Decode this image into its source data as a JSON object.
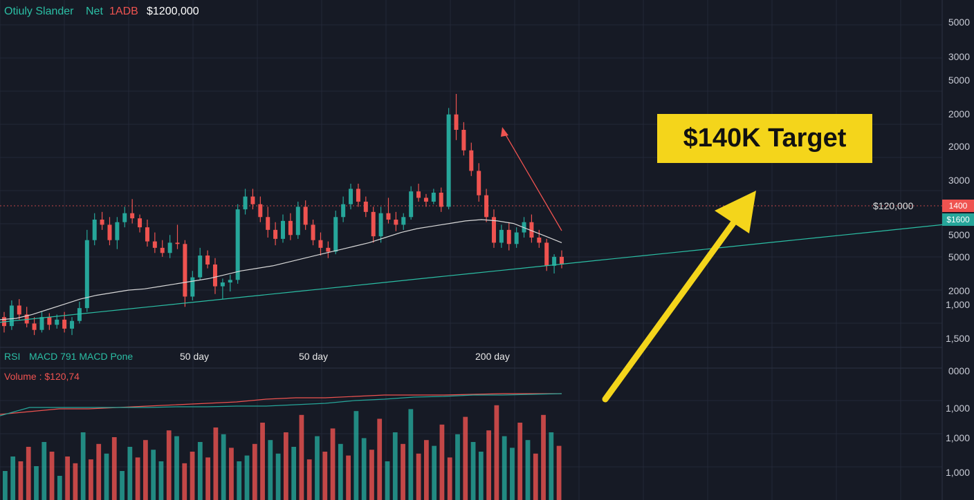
{
  "header": {
    "symbol": "Otiuly Slander",
    "exchange": "Net",
    "pair": "1ADB",
    "price": "$1200,000"
  },
  "annotation": {
    "target_label": "$140K Target",
    "resistance_label": "$120,000",
    "resistance_tag": "1400",
    "current_tag": "$1600"
  },
  "indicators": {
    "rsi": "RSI",
    "macd": "MACD  791  MACD Pone",
    "volume": "Volume : $120,74"
  },
  "ma_labels": [
    "50 day",
    "50 day",
    "200 day"
  ],
  "price_axis_labels": [
    "5000",
    "3000",
    "5000",
    "2000",
    "2000",
    "3000",
    "5000",
    "5000",
    "2000",
    "1,000",
    "1,500"
  ],
  "lower_axis_labels": [
    "0000",
    "1,000",
    "1,000",
    "1,000"
  ],
  "colors": {
    "background": "#161a25",
    "up": "#26a69a",
    "down": "#ef5350",
    "target_bg": "#f4d51b",
    "arrow": "#f4d51b",
    "ma_short": "#d9d9d9",
    "ma_long": "#2bbfa5"
  },
  "chart_data": {
    "type": "candlestick",
    "candles": [
      {
        "o": 1520,
        "h": 1560,
        "l": 1400,
        "c": 1450
      },
      {
        "o": 1450,
        "h": 1650,
        "l": 1420,
        "c": 1610
      },
      {
        "o": 1610,
        "h": 1660,
        "l": 1500,
        "c": 1540
      },
      {
        "o": 1540,
        "h": 1600,
        "l": 1440,
        "c": 1470
      },
      {
        "o": 1470,
        "h": 1520,
        "l": 1380,
        "c": 1420
      },
      {
        "o": 1420,
        "h": 1560,
        "l": 1400,
        "c": 1520
      },
      {
        "o": 1520,
        "h": 1550,
        "l": 1420,
        "c": 1460
      },
      {
        "o": 1460,
        "h": 1540,
        "l": 1430,
        "c": 1500
      },
      {
        "o": 1500,
        "h": 1560,
        "l": 1400,
        "c": 1430
      },
      {
        "o": 1430,
        "h": 1520,
        "l": 1380,
        "c": 1490
      },
      {
        "o": 1490,
        "h": 1640,
        "l": 1470,
        "c": 1590
      },
      {
        "o": 1590,
        "h": 2200,
        "l": 1560,
        "c": 2120
      },
      {
        "o": 2120,
        "h": 2330,
        "l": 2080,
        "c": 2280
      },
      {
        "o": 2280,
        "h": 2340,
        "l": 2200,
        "c": 2240
      },
      {
        "o": 2240,
        "h": 2300,
        "l": 2080,
        "c": 2120
      },
      {
        "o": 2120,
        "h": 2300,
        "l": 2050,
        "c": 2260
      },
      {
        "o": 2260,
        "h": 2380,
        "l": 2220,
        "c": 2330
      },
      {
        "o": 2330,
        "h": 2440,
        "l": 2250,
        "c": 2290
      },
      {
        "o": 2290,
        "h": 2320,
        "l": 2180,
        "c": 2220
      },
      {
        "o": 2220,
        "h": 2280,
        "l": 2070,
        "c": 2110
      },
      {
        "o": 2110,
        "h": 2180,
        "l": 2020,
        "c": 2060
      },
      {
        "o": 2060,
        "h": 2120,
        "l": 1990,
        "c": 2020
      },
      {
        "o": 2020,
        "h": 2160,
        "l": 1980,
        "c": 2100
      },
      {
        "o": 2100,
        "h": 2240,
        "l": 2050,
        "c": 2090
      },
      {
        "o": 2090,
        "h": 2120,
        "l": 1600,
        "c": 1680
      },
      {
        "o": 1680,
        "h": 1880,
        "l": 1650,
        "c": 1830
      },
      {
        "o": 1830,
        "h": 2060,
        "l": 1810,
        "c": 2000
      },
      {
        "o": 2000,
        "h": 2040,
        "l": 1900,
        "c": 1930
      },
      {
        "o": 1930,
        "h": 1980,
        "l": 1700,
        "c": 1760
      },
      {
        "o": 1760,
        "h": 1820,
        "l": 1660,
        "c": 1790
      },
      {
        "o": 1790,
        "h": 1850,
        "l": 1720,
        "c": 1810
      },
      {
        "o": 1810,
        "h": 2400,
        "l": 1780,
        "c": 2360
      },
      {
        "o": 2360,
        "h": 2520,
        "l": 2320,
        "c": 2460
      },
      {
        "o": 2460,
        "h": 2520,
        "l": 2360,
        "c": 2400
      },
      {
        "o": 2400,
        "h": 2460,
        "l": 2260,
        "c": 2300
      },
      {
        "o": 2300,
        "h": 2380,
        "l": 2140,
        "c": 2200
      },
      {
        "o": 2200,
        "h": 2260,
        "l": 2080,
        "c": 2130
      },
      {
        "o": 2130,
        "h": 2320,
        "l": 2100,
        "c": 2270
      },
      {
        "o": 2270,
        "h": 2330,
        "l": 2120,
        "c": 2160
      },
      {
        "o": 2160,
        "h": 2420,
        "l": 2130,
        "c": 2380
      },
      {
        "o": 2380,
        "h": 2430,
        "l": 2200,
        "c": 2240
      },
      {
        "o": 2240,
        "h": 2280,
        "l": 2080,
        "c": 2120
      },
      {
        "o": 2120,
        "h": 2180,
        "l": 2000,
        "c": 2060
      },
      {
        "o": 2060,
        "h": 2110,
        "l": 1980,
        "c": 2030
      },
      {
        "o": 2030,
        "h": 2350,
        "l": 2010,
        "c": 2300
      },
      {
        "o": 2300,
        "h": 2460,
        "l": 2260,
        "c": 2400
      },
      {
        "o": 2400,
        "h": 2560,
        "l": 2360,
        "c": 2520
      },
      {
        "o": 2520,
        "h": 2560,
        "l": 2380,
        "c": 2420
      },
      {
        "o": 2420,
        "h": 2460,
        "l": 2300,
        "c": 2340
      },
      {
        "o": 2340,
        "h": 2380,
        "l": 2100,
        "c": 2150
      },
      {
        "o": 2150,
        "h": 2380,
        "l": 2100,
        "c": 2330
      },
      {
        "o": 2330,
        "h": 2450,
        "l": 2250,
        "c": 2280
      },
      {
        "o": 2280,
        "h": 2340,
        "l": 2190,
        "c": 2240
      },
      {
        "o": 2240,
        "h": 2330,
        "l": 2200,
        "c": 2300
      },
      {
        "o": 2300,
        "h": 2540,
        "l": 2280,
        "c": 2500
      },
      {
        "o": 2500,
        "h": 2560,
        "l": 2420,
        "c": 2450
      },
      {
        "o": 2450,
        "h": 2480,
        "l": 2380,
        "c": 2420
      },
      {
        "o": 2420,
        "h": 2520,
        "l": 2400,
        "c": 2490
      },
      {
        "o": 2490,
        "h": 2530,
        "l": 2340,
        "c": 2380
      },
      {
        "o": 2380,
        "h": 3150,
        "l": 2360,
        "c": 3100
      },
      {
        "o": 3100,
        "h": 3260,
        "l": 2900,
        "c": 2980
      },
      {
        "o": 2980,
        "h": 3040,
        "l": 2780,
        "c": 2820
      },
      {
        "o": 2820,
        "h": 2880,
        "l": 2620,
        "c": 2660
      },
      {
        "o": 2660,
        "h": 2720,
        "l": 2420,
        "c": 2470
      },
      {
        "o": 2470,
        "h": 2520,
        "l": 2260,
        "c": 2300
      },
      {
        "o": 2300,
        "h": 2360,
        "l": 2060,
        "c": 2100
      },
      {
        "o": 2100,
        "h": 2240,
        "l": 2060,
        "c": 2200
      },
      {
        "o": 2200,
        "h": 2260,
        "l": 2040,
        "c": 2090
      },
      {
        "o": 2090,
        "h": 2220,
        "l": 2060,
        "c": 2180
      },
      {
        "o": 2180,
        "h": 2300,
        "l": 2140,
        "c": 2260
      },
      {
        "o": 2260,
        "h": 2320,
        "l": 2100,
        "c": 2140
      },
      {
        "o": 2140,
        "h": 2200,
        "l": 2060,
        "c": 2100
      },
      {
        "o": 2100,
        "h": 2130,
        "l": 1880,
        "c": 1920
      },
      {
        "o": 1920,
        "h": 2010,
        "l": 1860,
        "c": 1990
      },
      {
        "o": 1990,
        "h": 2040,
        "l": 1900,
        "c": 1930
      }
    ],
    "ma_50": [
      1500,
      1510,
      1540,
      1580,
      1620,
      1660,
      1690,
      1710,
      1730,
      1740,
      1760,
      1780,
      1800,
      1820,
      1850,
      1880,
      1900,
      1920,
      1950,
      1980,
      2010,
      2040,
      2070,
      2100,
      2140,
      2180,
      2210,
      2230,
      2250,
      2270,
      2280,
      2270,
      2250,
      2200,
      2150,
      2100
    ],
    "ma_200": [
      1480,
      1500,
      1520,
      1540,
      1560,
      1580,
      1600,
      1620,
      1640,
      1660,
      1680,
      1700,
      1720,
      1740,
      1760,
      1780,
      1800,
      1820,
      1840,
      1860,
      1880,
      1900,
      1920,
      1940,
      1960,
      1980,
      2000,
      2020,
      2040,
      2060,
      2080,
      2100,
      2120,
      2140,
      2160,
      2180,
      2200,
      2220,
      2240
    ],
    "volume": [
      30,
      45,
      40,
      55,
      35,
      60,
      50,
      25,
      45,
      38,
      70,
      42,
      58,
      48,
      65,
      30,
      55,
      44,
      62,
      52,
      40,
      72,
      66,
      38,
      50,
      60,
      44,
      75,
      68,
      54,
      40,
      46,
      58,
      80,
      62,
      48,
      70,
      55,
      88,
      42,
      66,
      50,
      74,
      58,
      46,
      92,
      64,
      52,
      84,
      40,
      70,
      58,
      94,
      48,
      62,
      56,
      78,
      44,
      68,
      86,
      60,
      50,
      72,
      98,
      66,
      54,
      80,
      62,
      48,
      88,
      70,
      56
    ]
  }
}
